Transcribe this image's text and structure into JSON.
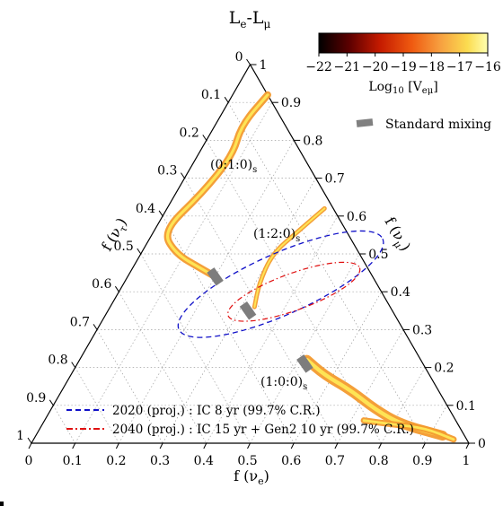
{
  "chart_data": {
    "type": "ternary",
    "title": "L",
    "title_sub_e": "e",
    "title_dash": "-L",
    "title_sub_mu": "μ",
    "axes": {
      "bottom": {
        "label": "f (ν",
        "sub": "e",
        "close": ")",
        "ticks": [
          "0",
          "0.1",
          "0.2",
          "0.3",
          "0.4",
          "0.5",
          "0.6",
          "0.7",
          "0.8",
          "0.9",
          "1"
        ]
      },
      "right": {
        "label": "f (ν",
        "sub": "μ",
        "close": ")",
        "ticks": [
          "0",
          "0.1",
          "0.2",
          "0.3",
          "0.4",
          "0.5",
          "0.6",
          "0.7",
          "0.8",
          "0.9",
          "1"
        ]
      },
      "left": {
        "label": "f (ν",
        "sub": "τ",
        "close": ")",
        "ticks": [
          "0",
          "0.1",
          "0.2",
          "0.3",
          "0.4",
          "0.5",
          "0.6",
          "0.7",
          "0.8",
          "0.9",
          "1"
        ]
      }
    },
    "grid": true,
    "colorbar": {
      "label": "Log",
      "label_sub": "10",
      "label_rest": "[V",
      "label_sub2": "eμ",
      "label_close": "]",
      "ticks": [
        "−22",
        "−21",
        "−20",
        "−19",
        "−18",
        "−17",
        "−16"
      ],
      "range": [
        -22,
        -16
      ],
      "colors": [
        "#000000",
        "#5c0000",
        "#c41a00",
        "#ef5a10",
        "#f7a040",
        "#fbdc50",
        "#ffffb0"
      ]
    },
    "legend_marker_label": "Standard mixing",
    "legend_lines": [
      {
        "label": "2020 (proj.) : IC 8 yr (99.7% C.R.)",
        "color": "#1010c8",
        "style": "dashed"
      },
      {
        "label": "2040 (proj.) : IC 15 yr + Gen2 10 yr (99.7% C.R.)",
        "color": "#e01010",
        "style": "dashdot"
      }
    ],
    "source_labels": [
      {
        "label": "(0:1:0)",
        "sub": "s"
      },
      {
        "label": "(1:2:0)",
        "sub": "s"
      },
      {
        "label": "(1:0:0)",
        "sub": "s"
      }
    ],
    "regions": {
      "ic2020_ellipse": {
        "center": [
          0.36,
          0.42
        ],
        "semi_axes": [
          0.255,
          0.07
        ],
        "angle_deg": 24
      },
      "ic2040_ellipse": {
        "center": [
          0.4,
          0.4
        ],
        "semi_axes": [
          0.16,
          0.042
        ],
        "angle_deg": 20
      },
      "standard_mixing": [
        {
          "fe": 0.2,
          "fmu": 0.44
        },
        {
          "fe": 0.32,
          "fmu": 0.35
        },
        {
          "fe": 0.52,
          "fmu": 0.21
        }
      ],
      "flows": [
        {
          "name": "from_010",
          "points": [
            [
              0.08,
              0.92
            ],
            [
              0.06,
              0.84
            ],
            [
              0.08,
              0.76
            ],
            [
              0.06,
              0.66
            ],
            [
              0.02,
              0.56
            ],
            [
              0.08,
              0.5
            ],
            [
              0.16,
              0.46
            ],
            [
              0.2,
              0.44
            ]
          ]
        },
        {
          "name": "from_120",
          "points": [
            [
              0.36,
              0.62
            ],
            [
              0.33,
              0.56
            ],
            [
              0.3,
              0.5
            ],
            [
              0.31,
              0.42
            ],
            [
              0.33,
              0.36
            ]
          ]
        },
        {
          "name": "from_100_a",
          "points": [
            [
              0.52,
              0.22
            ],
            [
              0.58,
              0.18
            ],
            [
              0.66,
              0.14
            ],
            [
              0.74,
              0.09
            ],
            [
              0.82,
              0.05
            ],
            [
              0.93,
              0.02
            ]
          ]
        },
        {
          "name": "from_100_b",
          "points": [
            [
              0.73,
              0.06
            ],
            [
              0.8,
              0.05
            ],
            [
              0.88,
              0.04
            ],
            [
              0.96,
              0.01
            ]
          ]
        }
      ]
    }
  }
}
